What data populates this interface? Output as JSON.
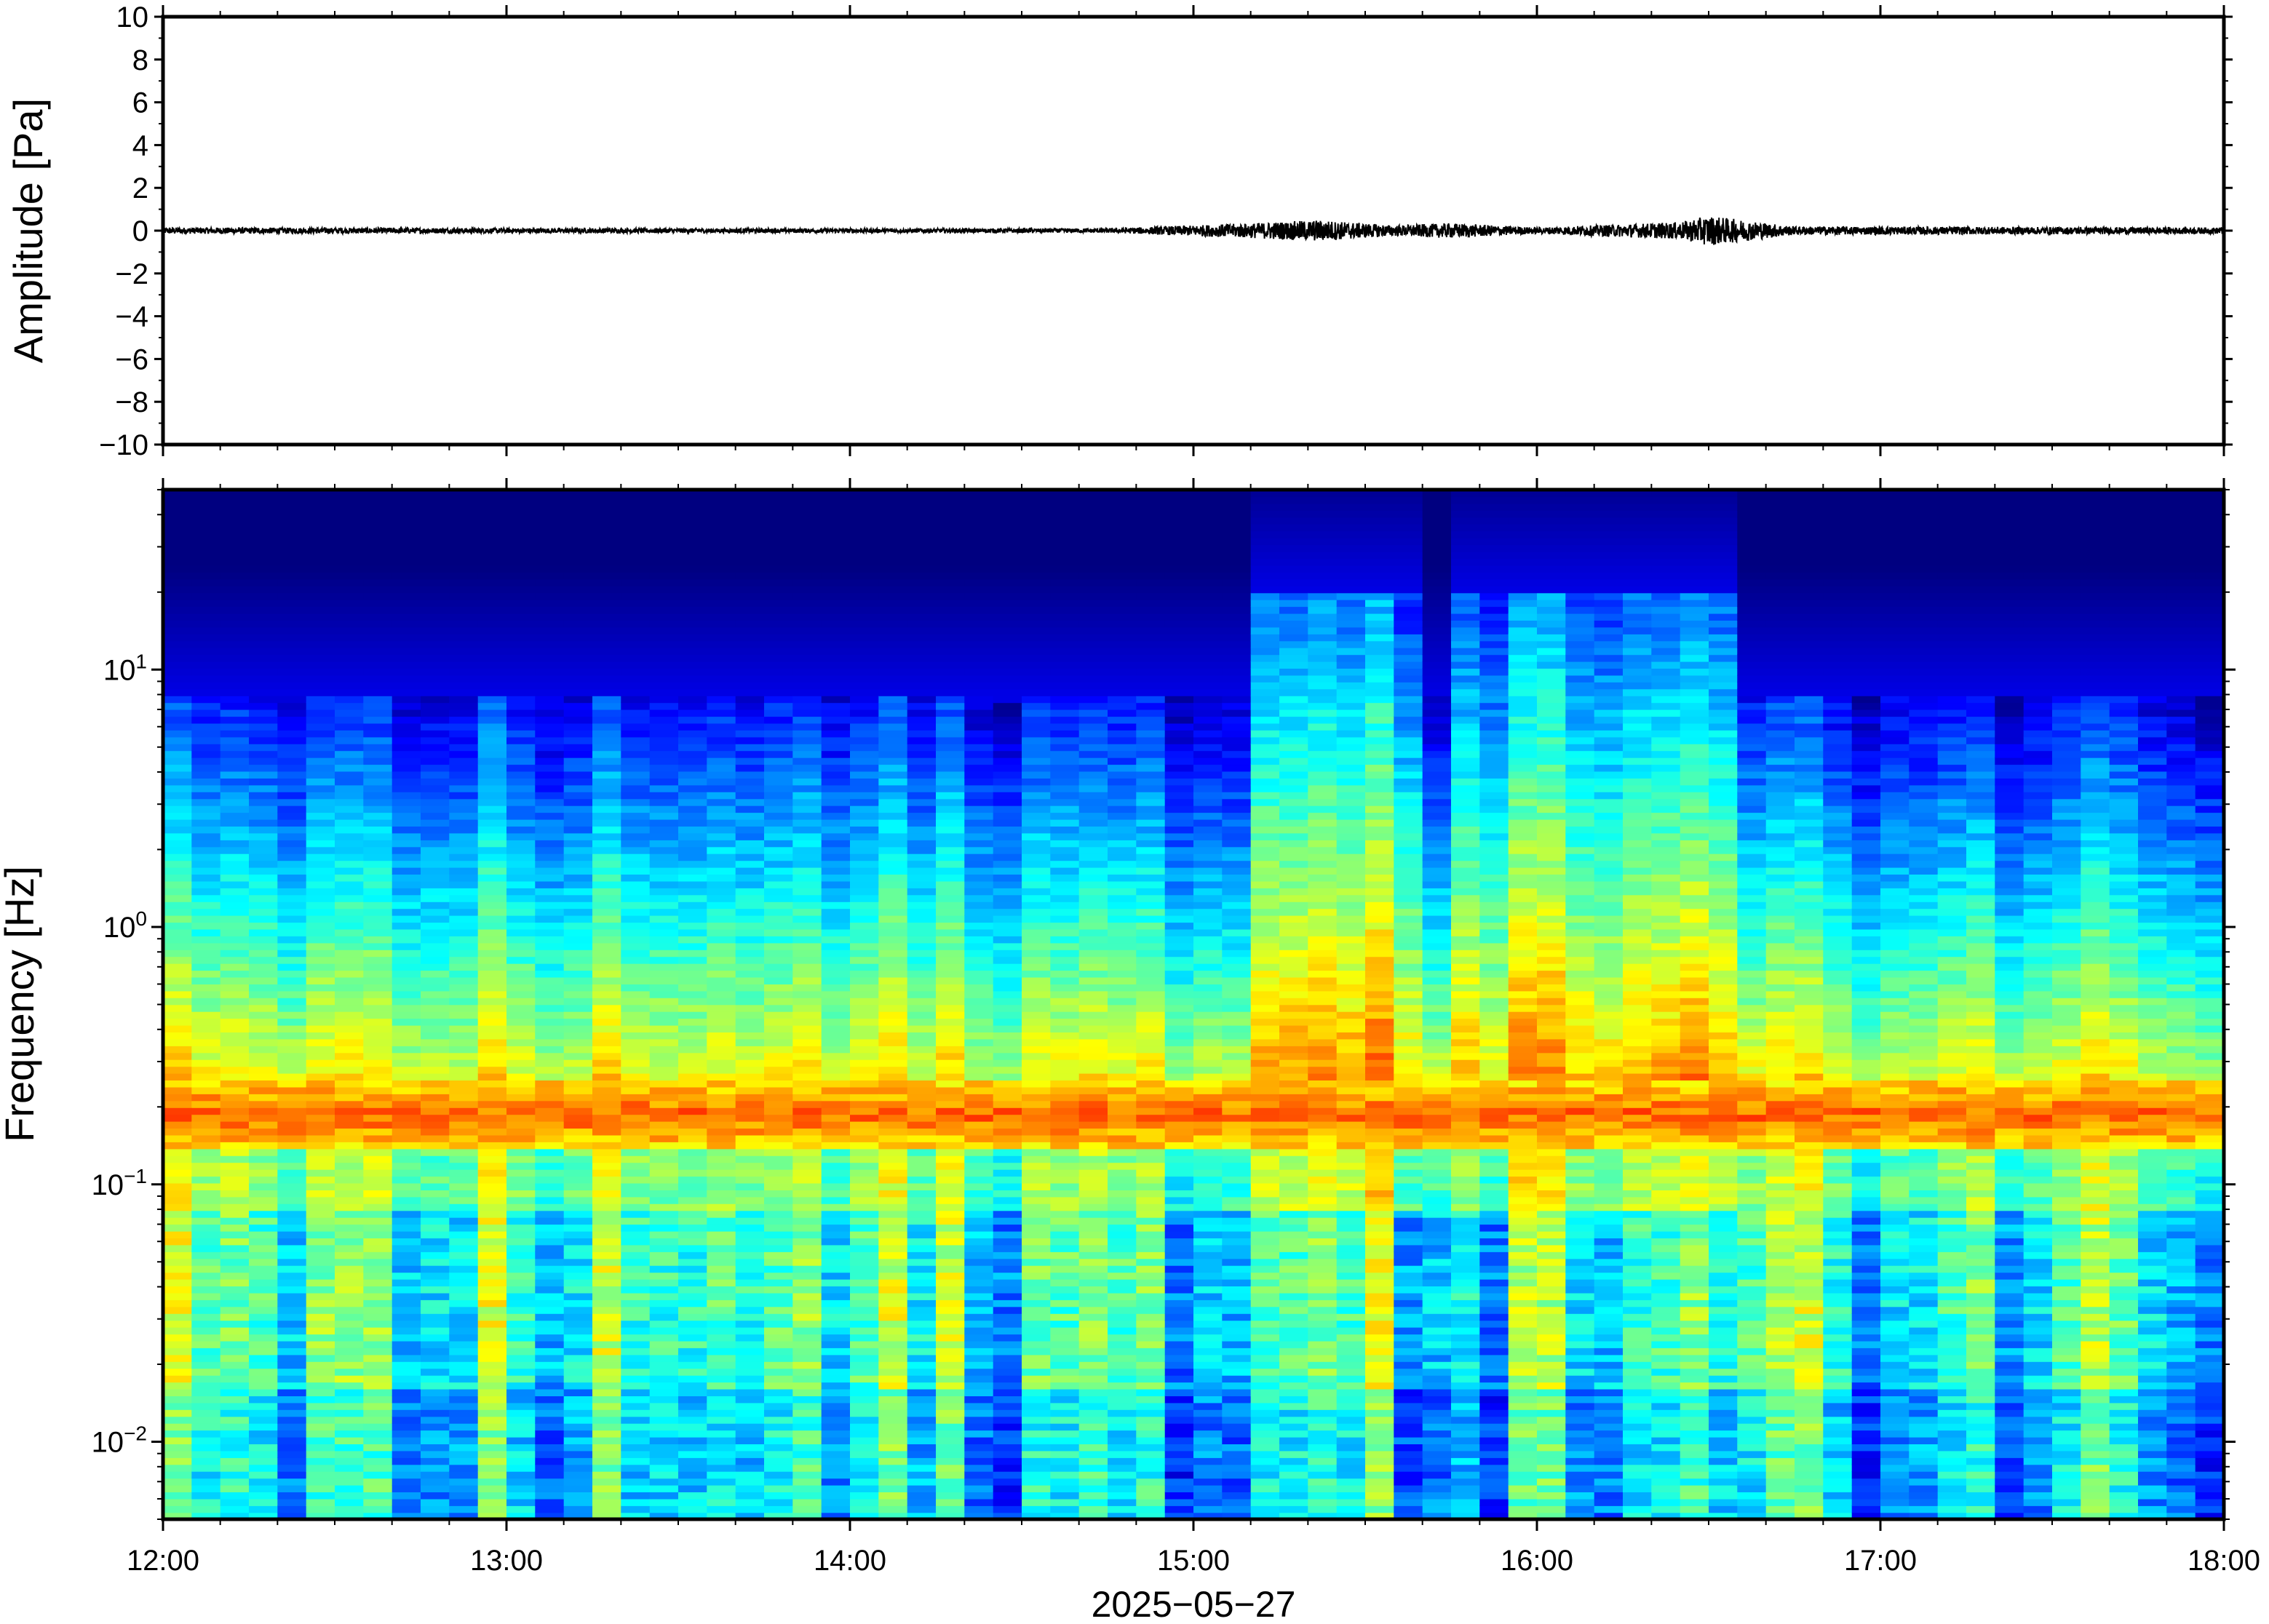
{
  "chart_data": [
    {
      "type": "line",
      "panel": "waveform",
      "ylabel": "Amplitude [Pa]",
      "ylim": [
        -10,
        10
      ],
      "yticks": [
        10,
        8,
        6,
        4,
        2,
        0,
        -2,
        -4,
        -6,
        -8,
        -10
      ],
      "ytick_labels": [
        "10",
        "8",
        "6",
        "4",
        "2",
        "0",
        "−2",
        "−4",
        "−6",
        "−8",
        "−10"
      ],
      "xlim": [
        "12:00",
        "18:00"
      ],
      "series": [
        {
          "color": "#000000",
          "baseline": 0,
          "envelope": [
            {
              "t": "12:00",
              "amp": 0.15
            },
            {
              "t": "13:00",
              "amp": 0.12
            },
            {
              "t": "14:00",
              "amp": 0.1
            },
            {
              "t": "14:45",
              "amp": 0.1
            },
            {
              "t": "15:10",
              "amp": 0.35
            },
            {
              "t": "15:22",
              "amp": 0.5
            },
            {
              "t": "15:35",
              "amp": 0.25
            },
            {
              "t": "15:45",
              "amp": 0.35
            },
            {
              "t": "16:00",
              "amp": 0.15
            },
            {
              "t": "16:25",
              "amp": 0.4
            },
            {
              "t": "16:30",
              "amp": 0.7
            },
            {
              "t": "16:45",
              "amp": 0.2
            },
            {
              "t": "18:00",
              "amp": 0.15
            }
          ]
        }
      ],
      "grid": false
    },
    {
      "type": "heatmap",
      "panel": "spectrogram",
      "ylabel": "Frequency [Hz]",
      "yscale": "log",
      "ylim": [
        0.005,
        50
      ],
      "yticks": [
        0.01,
        0.1,
        1,
        10
      ],
      "ytick_labels": [
        {
          "base": "10",
          "exp": "−2"
        },
        {
          "base": "10",
          "exp": "−1"
        },
        {
          "base": "10",
          "exp": "0"
        },
        {
          "base": "10",
          "exp": "1"
        }
      ],
      "xlabel": "2025−05−27",
      "xlim": [
        "12:00",
        "18:00"
      ],
      "xticks": [
        "12:00",
        "13:00",
        "14:00",
        "15:00",
        "16:00",
        "17:00",
        "18:00"
      ],
      "colormap": "jet",
      "colors": {
        "low": "#00007f",
        "mid": "#7fff7f",
        "high": "#ff7f00"
      },
      "features": {
        "persistent_band_hz": [
          0.14,
          0.25
        ],
        "noise_ceiling_hz": {
          "quiet": 8,
          "active": 20
        },
        "active_intervals": [
          [
            "15:08",
            "15:40"
          ],
          [
            "15:45",
            "16:25"
          ],
          [
            "16:25",
            "16:35"
          ]
        ]
      },
      "grid": false
    }
  ]
}
